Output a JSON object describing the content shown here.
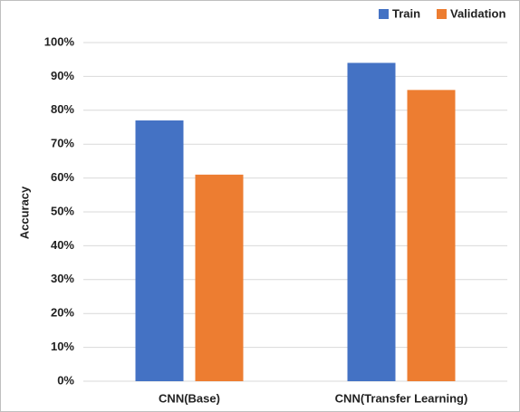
{
  "chart_data": {
    "type": "bar",
    "ylabel": "Accuracy",
    "categories": [
      "CNN(Base)",
      "CNN(Transfer Learning)"
    ],
    "series": [
      {
        "name": "Train",
        "color": "#4472c4",
        "values": [
          77,
          94
        ]
      },
      {
        "name": "Validation",
        "color": "#ed7d31",
        "values": [
          61,
          86
        ]
      }
    ],
    "ylim": [
      0,
      100
    ],
    "yticks": [
      {
        "value": 0,
        "label": "0%"
      },
      {
        "value": 10,
        "label": "10%"
      },
      {
        "value": 20,
        "label": "20%"
      },
      {
        "value": 30,
        "label": "30%"
      },
      {
        "value": 40,
        "label": "40%"
      },
      {
        "value": 50,
        "label": "50%"
      },
      {
        "value": 60,
        "label": "60%"
      },
      {
        "value": 70,
        "label": "70%"
      },
      {
        "value": 80,
        "label": "80%"
      },
      {
        "value": 90,
        "label": "90%"
      },
      {
        "value": 100,
        "label": "100%"
      }
    ],
    "grid": true,
    "legend": "top-right"
  }
}
